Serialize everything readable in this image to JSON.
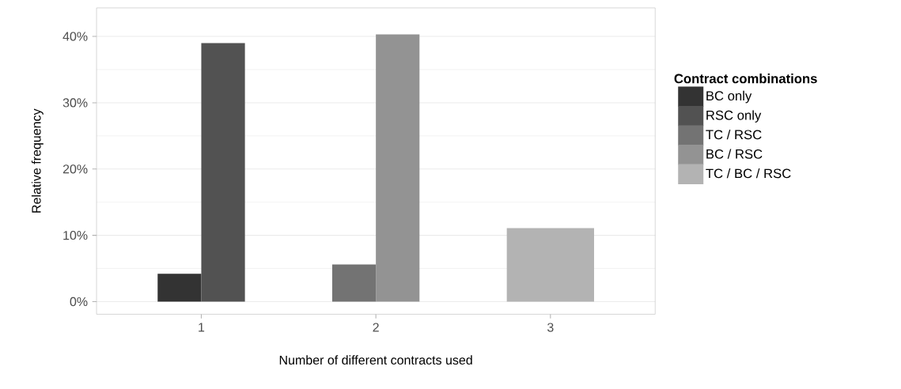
{
  "chart_data": {
    "type": "bar",
    "xlabel": "Number of different contracts used",
    "ylabel": "Relative frequency",
    "legend_title": "Contract combinations",
    "categories": [
      "1",
      "2",
      "3"
    ],
    "series": [
      {
        "name": "BC only",
        "color": "#333333",
        "values": [
          4.2,
          null,
          null
        ]
      },
      {
        "name": "RSC only",
        "color": "#525252",
        "values": [
          39.0,
          null,
          null
        ]
      },
      {
        "name": "TC / RSC",
        "color": "#737373",
        "values": [
          null,
          5.6,
          null
        ]
      },
      {
        "name": "BC / RSC",
        "color": "#939393",
        "values": [
          null,
          40.3,
          null
        ]
      },
      {
        "name": "TC / BC / RSC",
        "color": "#b3b3b3",
        "values": [
          null,
          null,
          11.1
        ]
      }
    ],
    "ylim": [
      -1.9,
      44.3
    ],
    "yticks": [
      {
        "value": 0,
        "label": "0%"
      },
      {
        "value": 10,
        "label": "10%"
      },
      {
        "value": 20,
        "label": "20%"
      },
      {
        "value": 30,
        "label": "30%"
      },
      {
        "value": 40,
        "label": "40%"
      }
    ],
    "grid": "y",
    "legend": "right"
  }
}
